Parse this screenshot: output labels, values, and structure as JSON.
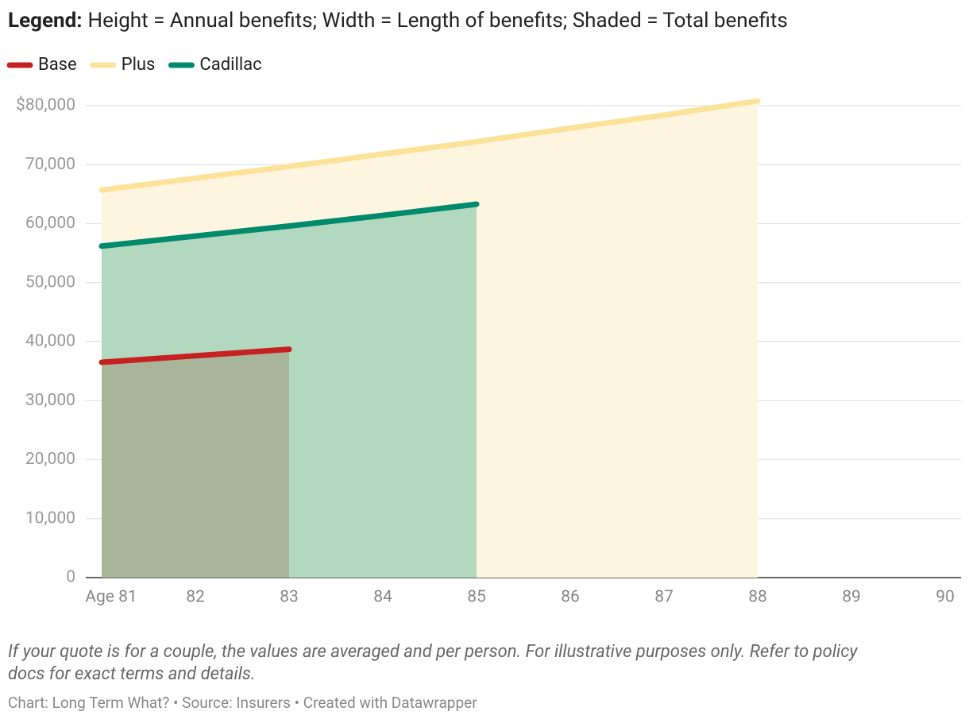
{
  "chart_data": {
    "type": "line",
    "legend_title": "Legend:",
    "legend_text": "Height = Annual benefits; Width = Length of benefits; Shaded = Total benefits",
    "notes": [
      "If your quote is for a couple, the values are averaged and per person. For illustrative purposes only. Refer to policy",
      "docs for exact terms and details."
    ],
    "source": "Chart: Long Term What? • Source: Insurers • Created with Datawrapper",
    "series": [
      {
        "name": "Base",
        "color": "#c62121",
        "area_color": "#a8b59b",
        "x": [
          81,
          82,
          83
        ],
        "values": [
          36500,
          37600,
          38700
        ]
      },
      {
        "name": "Plus",
        "color": "#fde39a",
        "area_color": "#fef5e0",
        "x": [
          81,
          82,
          83,
          84,
          85,
          86,
          87,
          88
        ],
        "values": [
          65700,
          67700,
          69700,
          71800,
          73900,
          76200,
          78400,
          80800
        ]
      },
      {
        "name": "Cadillac",
        "color": "#008a6e",
        "area_color": "#b2d8bf",
        "x": [
          81,
          82,
          83,
          84,
          85
        ],
        "values": [
          56200,
          57900,
          59600,
          61400,
          63300
        ]
      }
    ],
    "xlim": [
      81,
      90
    ],
    "xticks": [
      {
        "value": 81,
        "label": "Age 81"
      },
      82,
      83,
      84,
      85,
      86,
      87,
      88,
      89,
      90
    ],
    "ylim": [
      0,
      80000
    ],
    "yticks": [
      0,
      {
        "value": 10000,
        "label": "10,000"
      },
      {
        "value": 20000,
        "label": "20,000"
      },
      {
        "value": 30000,
        "label": "30,000"
      },
      {
        "value": 40000,
        "label": "40,000"
      },
      {
        "value": 50000,
        "label": "50,000"
      },
      {
        "value": 60000,
        "label": "60,000"
      },
      {
        "value": 70000,
        "label": "70,000"
      },
      {
        "value": 80000,
        "label": "$80,000"
      }
    ],
    "grid": true
  }
}
